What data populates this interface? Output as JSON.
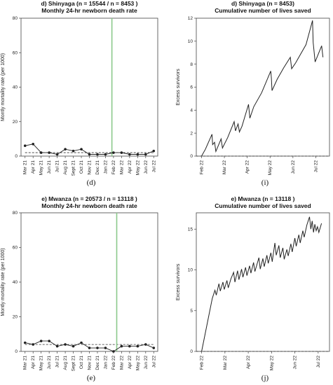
{
  "figures": [
    {
      "label": "(d)"
    },
    {
      "label": "(i)"
    },
    {
      "label": "(e)"
    },
    {
      "label": "(j)"
    }
  ],
  "chart_data": [
    {
      "type": "line",
      "title": "d) Shinyaga (n = 15544  / n = 8453 )",
      "subtitle": "Monthly 24-hr newborn death rate",
      "ylabel": "Montly mortality rate (per 1000)",
      "xlabel": "",
      "categories": [
        "Mar 21",
        "Apr 21",
        "May 21",
        "Jun 21",
        "Jul 21",
        "Aug 21",
        "Sept 21",
        "Oct 21",
        "Nov 21",
        "Dec 21",
        "Jan 22",
        "Feb 22",
        "Mar 22",
        "Apr 22",
        "May 22",
        "Jun 22",
        "Jul 22"
      ],
      "values": [
        6,
        7,
        2,
        2,
        1,
        4,
        3,
        4,
        1,
        1,
        1,
        2,
        2,
        1,
        1,
        1,
        3
      ],
      "ylim": [
        0,
        80
      ],
      "yticks": [
        0,
        20,
        40,
        60,
        80
      ],
      "baseline": 2,
      "intervention_index": 10.8,
      "colors": {
        "line": "#222222",
        "intervention": "#8cc98c"
      }
    },
    {
      "type": "line",
      "title": "d) Shinyaga (n = 8453)",
      "subtitle": "Cumulative number of lives saved",
      "ylabel": "Excess survivors",
      "xlabel": "",
      "x_ticks": [
        "Feb 22",
        "Mar 22",
        "Apr 22",
        "May 22",
        "Jun 22",
        "Jul 22"
      ],
      "ylim": [
        0,
        12
      ],
      "yticks": [
        0,
        2,
        4,
        6,
        8,
        10,
        12
      ],
      "series": [
        {
          "points": [
            [
              0,
              0
            ],
            [
              0.3,
              0.6
            ],
            [
              0.8,
              1.9
            ],
            [
              0.85,
              1.0
            ],
            [
              1.0,
              1.2
            ],
            [
              1.1,
              0.4
            ],
            [
              1.5,
              1.5
            ],
            [
              1.6,
              0.7
            ],
            [
              2.0,
              1.6
            ],
            [
              2.5,
              3.0
            ],
            [
              2.6,
              2.2
            ],
            [
              2.8,
              2.8
            ],
            [
              2.9,
              2.1
            ],
            [
              3.1,
              2.6
            ],
            [
              3.6,
              4.5
            ],
            [
              3.7,
              3.3
            ],
            [
              4.0,
              4.3
            ],
            [
              4.6,
              5.5
            ],
            [
              5.3,
              7.4
            ],
            [
              5.35,
              6.8
            ],
            [
              5.4,
              5.7
            ],
            [
              5.8,
              6.7
            ],
            [
              6.3,
              7.7
            ],
            [
              6.8,
              8.6
            ],
            [
              6.9,
              7.6
            ],
            [
              7.2,
              8.1
            ],
            [
              8.0,
              9.7
            ],
            [
              8.5,
              11.8
            ],
            [
              8.55,
              9.9
            ],
            [
              8.7,
              8.2
            ],
            [
              9.2,
              9.6
            ],
            [
              9.3,
              8.6
            ]
          ]
        }
      ],
      "x_tick_positions": [
        0,
        1,
        2,
        3,
        4,
        5
      ],
      "x_range": [
        -0.4,
        9.8
      ],
      "colors": {
        "line": "#222222"
      }
    },
    {
      "type": "line",
      "title": "e) Mwanza (n = 20573  / n = 13118 )",
      "subtitle": "Monthly 24-hr newborn death rate",
      "ylabel": "Montly mortality rate (per 1000)",
      "xlabel": "",
      "categories": [
        "Mar 21",
        "Apr 21",
        "May 21",
        "Jun 21",
        "Jul 21",
        "Aug 21",
        "Sept 21",
        "Oct 21",
        "Nov 21",
        "Dec 21",
        "Jan 22",
        "Feb 22",
        "Mar 22",
        "Apr 22",
        "May 22",
        "Jun 22",
        "Jul 22"
      ],
      "values": [
        5,
        4,
        6,
        6,
        3,
        4,
        3,
        5,
        2,
        2,
        2,
        0,
        3,
        3,
        3,
        4,
        2
      ],
      "ylim": [
        0,
        80
      ],
      "yticks": [
        0,
        20,
        40,
        60,
        80
      ],
      "baseline": 4,
      "intervention_index": 11.4,
      "colors": {
        "line": "#222222",
        "intervention": "#8cc98c"
      }
    },
    {
      "type": "line",
      "title": "e) Mwanza (n = 13118 )",
      "subtitle": "Cumulative number of lives saved",
      "ylabel": "Excess survivors",
      "xlabel": "",
      "x_ticks": [
        "Feb 22",
        "Mar 22",
        "Apr 22",
        "May 22",
        "Jun 22",
        "Jul 22"
      ],
      "ylim": [
        0,
        17
      ],
      "yticks": [
        0,
        5,
        10,
        15
      ],
      "series": [
        {
          "points": [
            [
              0,
              0
            ],
            [
              0.8,
              6.5
            ],
            [
              1.0,
              7.5
            ],
            [
              1.1,
              6.9
            ],
            [
              1.3,
              8.3
            ],
            [
              1.4,
              7.4
            ],
            [
              1.6,
              8.5
            ],
            [
              1.7,
              7.6
            ],
            [
              1.9,
              8.7
            ],
            [
              2.0,
              7.8
            ],
            [
              2.2,
              8.9
            ],
            [
              2.4,
              9.7
            ],
            [
              2.5,
              8.5
            ],
            [
              2.7,
              9.9
            ],
            [
              2.8,
              8.8
            ],
            [
              3.0,
              10.1
            ],
            [
              3.1,
              9.1
            ],
            [
              3.3,
              10.3
            ],
            [
              3.4,
              9.3
            ],
            [
              3.6,
              10.5
            ],
            [
              3.7,
              9.6
            ],
            [
              3.9,
              10.9
            ],
            [
              4.0,
              9.8
            ],
            [
              4.3,
              11.5
            ],
            [
              4.4,
              10.1
            ],
            [
              4.6,
              11.4
            ],
            [
              4.7,
              10.4
            ],
            [
              4.9,
              11.8
            ],
            [
              5.0,
              10.8
            ],
            [
              5.2,
              12.1
            ],
            [
              5.3,
              11.0
            ],
            [
              5.5,
              13.3
            ],
            [
              5.6,
              11.8
            ],
            [
              5.8,
              13.0
            ],
            [
              5.9,
              11.5
            ],
            [
              6.1,
              12.7
            ],
            [
              6.2,
              11.3
            ],
            [
              6.4,
              12.5
            ],
            [
              6.5,
              11.7
            ],
            [
              6.7,
              13.2
            ],
            [
              6.8,
              12.2
            ],
            [
              7.0,
              13.9
            ],
            [
              7.1,
              12.9
            ],
            [
              7.3,
              14.3
            ],
            [
              7.4,
              13.3
            ],
            [
              7.6,
              14.8
            ],
            [
              7.7,
              14.0
            ],
            [
              7.9,
              15.5
            ],
            [
              8.1,
              16.5
            ],
            [
              8.2,
              15.0
            ],
            [
              8.3,
              16.0
            ],
            [
              8.4,
              14.6
            ],
            [
              8.5,
              15.6
            ],
            [
              8.6,
              14.8
            ],
            [
              8.7,
              15.3
            ],
            [
              8.8,
              14.6
            ],
            [
              9.0,
              15.7
            ]
          ]
        }
      ],
      "x_tick_positions": [
        0,
        1,
        2,
        3,
        4,
        5
      ],
      "x_range": [
        -0.4,
        9.6
      ],
      "colors": {
        "line": "#222222"
      }
    }
  ]
}
